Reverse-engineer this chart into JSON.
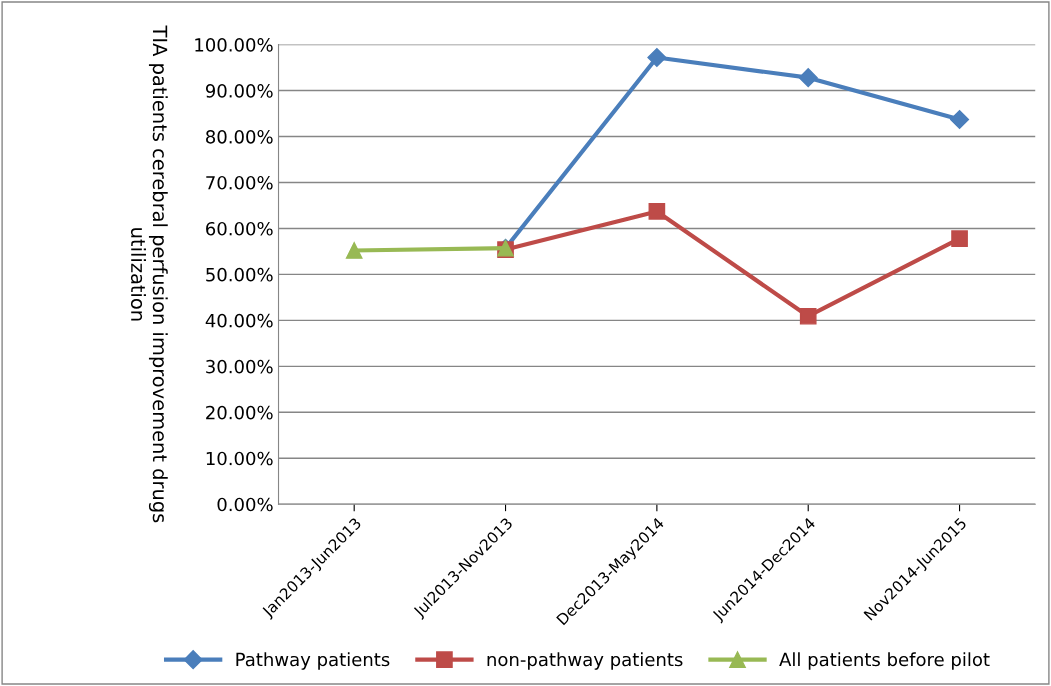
{
  "chart_data": {
    "type": "line",
    "ylabel": "TIA patients cerebral perfusion improvement drugs utilization",
    "categories": [
      "Jan2013-Jun2013",
      "Jul2013-Nov2013",
      "Dec2013-May2014",
      "Jun2014-Dec2014",
      "Nov2014-Jun2015"
    ],
    "series": [
      {
        "name": "Pathway patients",
        "color": "#4a7ebb",
        "marker": "diamond",
        "values": [
          null,
          55.7,
          97.2,
          92.8,
          83.7
        ]
      },
      {
        "name": "non-pathway patients",
        "color": "#be4b48",
        "marker": "square",
        "values": [
          null,
          55.4,
          63.7,
          40.9,
          57.8
        ]
      },
      {
        "name": "All patients before pilot",
        "color": "#98b954",
        "marker": "triangle",
        "values": [
          55.2,
          55.7,
          null,
          null,
          null
        ]
      }
    ],
    "ylim": [
      0,
      100
    ],
    "yticks": [
      {
        "value": 0,
        "label": "0.00%"
      },
      {
        "value": 10,
        "label": "10.00%"
      },
      {
        "value": 20,
        "label": "20.00%"
      },
      {
        "value": 30,
        "label": "30.00%"
      },
      {
        "value": 40,
        "label": "40.00%"
      },
      {
        "value": 50,
        "label": "50.00%"
      },
      {
        "value": 60,
        "label": "60.00%"
      },
      {
        "value": 70,
        "label": "70.00%"
      },
      {
        "value": 80,
        "label": "80.00%"
      },
      {
        "value": 90,
        "label": "90.00%"
      },
      {
        "value": 100,
        "label": "100.00%"
      }
    ],
    "grid": "y",
    "legend": "bottom",
    "line_style": "solid"
  }
}
